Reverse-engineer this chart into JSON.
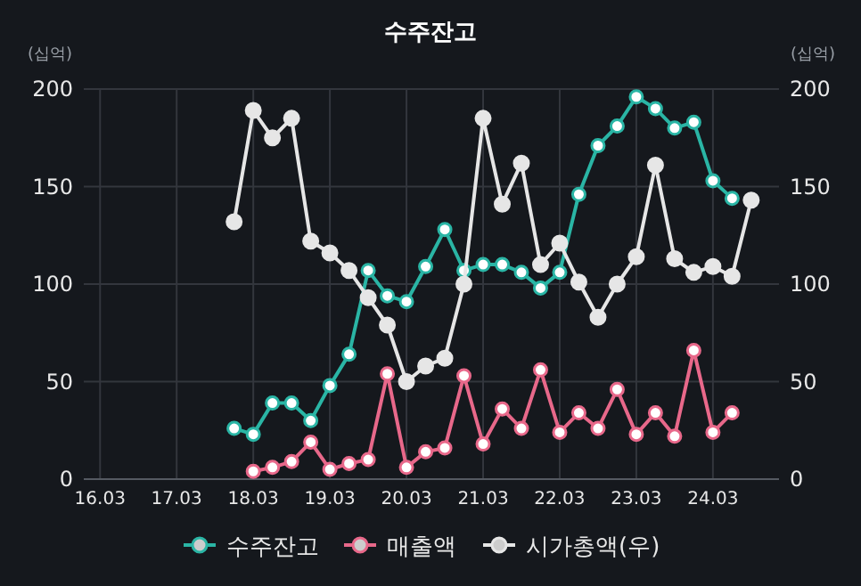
{
  "chart_data": {
    "type": "line",
    "title": "수주잔고",
    "ylabel": "(십억)",
    "y2label": "(십억)",
    "categories": [
      "16.03",
      null,
      null,
      null,
      "17.03",
      null,
      null,
      null,
      "18.03",
      null,
      null,
      null,
      "19.03",
      null,
      null,
      null,
      "20.03",
      null,
      null,
      null,
      "21.03",
      null,
      null,
      null,
      "22.03",
      null,
      null,
      null,
      "23.03",
      null,
      null,
      null,
      "24.03",
      null,
      null
    ],
    "series": [
      {
        "name": "수주잔고",
        "color": "#2ab5a5",
        "values": [
          null,
          null,
          null,
          null,
          null,
          null,
          null,
          26,
          23,
          39,
          39,
          30,
          48,
          64,
          107,
          94,
          91,
          109,
          128,
          107,
          110,
          110,
          106,
          98,
          106,
          146,
          171,
          181,
          196,
          190,
          180,
          183,
          153,
          144,
          null
        ]
      },
      {
        "name": "매출액",
        "color": "#e8688a",
        "values": [
          null,
          null,
          null,
          null,
          null,
          null,
          null,
          null,
          4,
          6,
          9,
          19,
          5,
          8,
          10,
          54,
          6,
          14,
          16,
          53,
          18,
          36,
          26,
          56,
          24,
          34,
          26,
          46,
          23,
          34,
          22,
          66,
          24,
          34,
          null
        ]
      },
      {
        "name": "시가총액(우)",
        "color": "#e6e6e6",
        "axis": "y2",
        "values": [
          null,
          null,
          null,
          null,
          null,
          null,
          null,
          132,
          189,
          175,
          185,
          122,
          116,
          107,
          93,
          79,
          50,
          58,
          62,
          100,
          185,
          141,
          162,
          110,
          121,
          101,
          83,
          100,
          114,
          161,
          113,
          106,
          109,
          104,
          143
        ]
      }
    ],
    "ylim": [
      0,
      200
    ],
    "yticks": [
      0,
      50,
      100,
      150,
      200
    ],
    "y2lim": [
      0,
      200
    ],
    "y2ticks": [
      0,
      50,
      100,
      150,
      200
    ],
    "grid": true,
    "legend": "bottom",
    "marker": "circle",
    "line_style": "solid"
  }
}
